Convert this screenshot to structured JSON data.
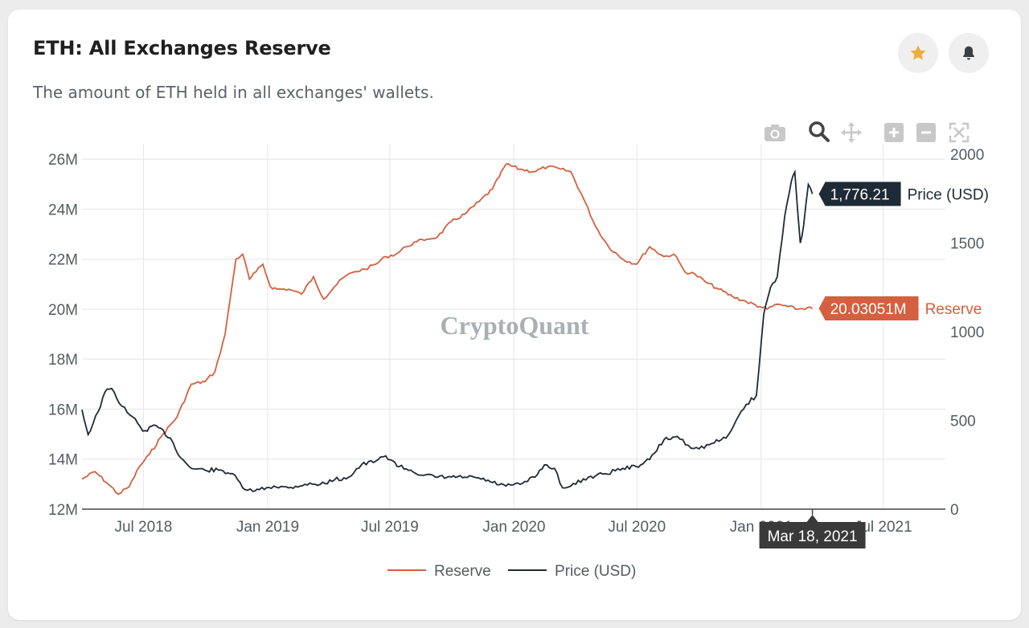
{
  "header": {
    "title": "ETH: All Exchanges Reserve",
    "subtitle": "The amount of ETH held in all exchanges' wallets."
  },
  "colors": {
    "reserve": "#d4603f",
    "price": "#1e2a36",
    "star": "#f0ad3c",
    "grid": "#e9e9e9",
    "tick_text": "#555b61"
  },
  "icons": {
    "favorite": "star-icon",
    "alert": "bell-icon",
    "modebar": [
      "camera-icon",
      "zoom-icon",
      "pan-icon",
      "zoom-in-icon",
      "zoom-out-icon",
      "autoscale-icon"
    ]
  },
  "watermark": "CryptoQuant",
  "tooltips": {
    "price_value": "1,776.21",
    "price_label": "Price (USD)",
    "reserve_value": "20.03051M",
    "reserve_label": "Reserve",
    "date": "Mar 18, 2021"
  },
  "chart_data": {
    "type": "line",
    "x_range": [
      "2018-04-01",
      "2021-10-01"
    ],
    "x_ticks": [
      {
        "date": "2018-07-01",
        "label": "Jul 2018"
      },
      {
        "date": "2019-01-01",
        "label": "Jan 2019"
      },
      {
        "date": "2019-07-01",
        "label": "Jul 2019"
      },
      {
        "date": "2020-01-01",
        "label": "Jan 2020"
      },
      {
        "date": "2020-07-01",
        "label": "Jul 2020"
      },
      {
        "date": "2021-01-01",
        "label": "Jan 2021"
      },
      {
        "date": "2021-07-01",
        "label": "Jul 2021"
      }
    ],
    "y_left": {
      "range": [
        12,
        26.2
      ],
      "ticks": [
        12,
        14,
        16,
        18,
        20,
        22,
        24,
        26
      ],
      "tick_labels": [
        "12M",
        "14M",
        "16M",
        "18M",
        "20M",
        "22M",
        "24M",
        "26M"
      ]
    },
    "y_right": {
      "range": [
        0,
        2000
      ],
      "ticks": [
        0,
        500,
        1000,
        1500,
        2000
      ],
      "tick_labels": [
        "0",
        "500",
        "1000",
        "1500",
        "2000"
      ]
    },
    "grid": true,
    "legend_position": "bottom-center",
    "series": [
      {
        "name": "Reserve",
        "axis": "left",
        "x": [
          "2018-04-01",
          "2018-04-20",
          "2018-05-10",
          "2018-05-25",
          "2018-06-10",
          "2018-06-25",
          "2018-07-10",
          "2018-07-30",
          "2018-08-20",
          "2018-09-10",
          "2018-09-30",
          "2018-10-15",
          "2018-10-30",
          "2018-11-15",
          "2018-11-25",
          "2018-12-05",
          "2018-12-15",
          "2018-12-25",
          "2019-01-05",
          "2019-01-15",
          "2019-02-01",
          "2019-02-20",
          "2019-03-10",
          "2019-03-25",
          "2019-04-10",
          "2019-04-25",
          "2019-05-10",
          "2019-05-25",
          "2019-06-10",
          "2019-06-25",
          "2019-07-10",
          "2019-07-25",
          "2019-08-10",
          "2019-08-25",
          "2019-09-10",
          "2019-09-30",
          "2019-10-20",
          "2019-11-10",
          "2019-11-30",
          "2019-12-20",
          "2020-01-10",
          "2020-01-30",
          "2020-02-20",
          "2020-03-10",
          "2020-03-25",
          "2020-04-15",
          "2020-05-01",
          "2020-05-20",
          "2020-06-10",
          "2020-06-30",
          "2020-07-20",
          "2020-08-10",
          "2020-08-25",
          "2020-09-10",
          "2020-09-25",
          "2020-10-10",
          "2020-10-30",
          "2020-11-20",
          "2020-12-10",
          "2020-12-30",
          "2021-01-10",
          "2021-01-25",
          "2021-02-10",
          "2021-02-25",
          "2021-03-10",
          "2021-03-18"
        ],
        "values": [
          13.2,
          13.5,
          13.0,
          12.6,
          12.9,
          13.7,
          14.2,
          15.0,
          15.7,
          17.0,
          17.1,
          17.5,
          19.0,
          22.0,
          22.2,
          21.2,
          21.5,
          21.8,
          20.9,
          20.8,
          20.8,
          20.6,
          21.3,
          20.4,
          20.9,
          21.3,
          21.5,
          21.6,
          21.8,
          22.1,
          22.2,
          22.5,
          22.7,
          22.8,
          22.9,
          23.5,
          23.8,
          24.3,
          24.8,
          25.8,
          25.6,
          25.5,
          25.7,
          25.6,
          25.5,
          24.3,
          23.3,
          22.5,
          22.0,
          21.8,
          22.5,
          22.1,
          22.2,
          21.5,
          21.4,
          21.1,
          20.8,
          20.5,
          20.3,
          20.1,
          20.0,
          20.2,
          20.1,
          20.0,
          20.05,
          20.03
        ],
        "x_early": [],
        "notes": []
      },
      {
        "name": "Price (USD)",
        "axis": "right",
        "x": [
          "2018-04-01",
          "2018-04-10",
          "2018-04-25",
          "2018-05-05",
          "2018-05-15",
          "2018-05-30",
          "2018-06-15",
          "2018-06-30",
          "2018-07-20",
          "2018-08-10",
          "2018-08-25",
          "2018-09-10",
          "2018-09-30",
          "2018-10-20",
          "2018-11-10",
          "2018-11-25",
          "2018-12-10",
          "2018-12-20",
          "2019-01-10",
          "2019-02-01",
          "2019-02-25",
          "2019-03-20",
          "2019-04-10",
          "2019-05-01",
          "2019-05-20",
          "2019-06-10",
          "2019-06-25",
          "2019-07-15",
          "2019-08-01",
          "2019-08-20",
          "2019-09-10",
          "2019-09-30",
          "2019-10-20",
          "2019-11-10",
          "2019-11-30",
          "2019-12-20",
          "2020-01-10",
          "2020-02-01",
          "2020-02-15",
          "2020-03-01",
          "2020-03-13",
          "2020-03-25",
          "2020-04-20",
          "2020-05-15",
          "2020-06-10",
          "2020-06-30",
          "2020-07-20",
          "2020-08-10",
          "2020-08-30",
          "2020-09-15",
          "2020-10-01",
          "2020-10-20",
          "2020-11-10",
          "2020-11-25",
          "2020-12-10",
          "2020-12-25",
          "2021-01-05",
          "2021-01-15",
          "2021-01-25",
          "2021-02-05",
          "2021-02-15",
          "2021-02-20",
          "2021-02-28",
          "2021-03-05",
          "2021-03-12",
          "2021-03-18"
        ],
        "values": [
          560,
          420,
          550,
          660,
          680,
          580,
          520,
          440,
          470,
          400,
          290,
          230,
          220,
          220,
          200,
          120,
          100,
          110,
          130,
          120,
          140,
          140,
          165,
          180,
          250,
          270,
          300,
          240,
          220,
          190,
          180,
          180,
          180,
          175,
          150,
          130,
          140,
          180,
          250,
          230,
          120,
          130,
          180,
          200,
          230,
          240,
          280,
          390,
          410,
          360,
          340,
          370,
          400,
          500,
          590,
          640,
          1100,
          1250,
          1310,
          1650,
          1850,
          1900,
          1500,
          1600,
          1830,
          1776.21
        ]
      }
    ]
  },
  "legend": {
    "items": [
      {
        "label": "Reserve",
        "color_key": "reserve"
      },
      {
        "label": "Price (USD)",
        "color_key": "price"
      }
    ]
  }
}
